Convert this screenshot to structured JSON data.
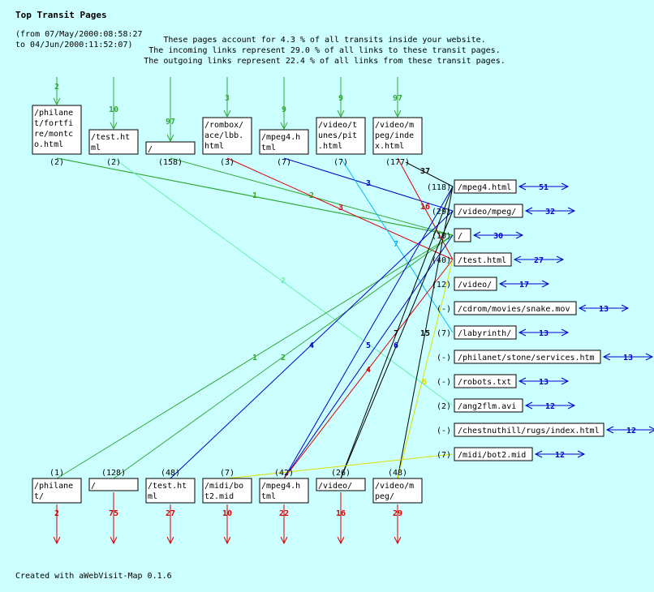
{
  "header": {
    "title": "Top Transit Pages",
    "period_line1": "(from 07/May/2000:08:58:27",
    "period_line2": "to 04/Jun/2000:11:52:07)",
    "summary": [
      "These pages account for 4.3 % of all transits inside your website.",
      "The incoming links represent 29.0 % of all links to these transit pages.",
      "The outgoing links represent 22.4 % of all links from these transit pages."
    ]
  },
  "colors": {
    "background": "#ccffff",
    "green": "#33aa33",
    "blue": "#0000cc",
    "red": "#dd0000",
    "cyan": "#00bbff",
    "yellow": "#dddd00",
    "lightgreen": "#66eeaa",
    "black": "#000000"
  },
  "top_sources": [
    {
      "label": [
        "/philane",
        "t/fortfi",
        "re/montc",
        "o.html"
      ],
      "count": "(2)",
      "incoming": "2"
    },
    {
      "label": [
        "/test.ht",
        "ml"
      ],
      "count": "(2)",
      "incoming": "10"
    },
    {
      "label": [
        "/"
      ],
      "count": "(158)",
      "incoming": "97"
    },
    {
      "label": [
        "/rombox/",
        "ace/lbb.",
        "html"
      ],
      "count": "(3)",
      "incoming": "3"
    },
    {
      "label": [
        "/mpeg4.h",
        "tml"
      ],
      "count": "(7)",
      "incoming": "9"
    },
    {
      "label": [
        "/video/t",
        "unes/pit",
        ".html"
      ],
      "count": "(7)",
      "incoming": "9"
    },
    {
      "label": [
        "/video/m",
        "peg/inde",
        "x.html"
      ],
      "count": "(177)",
      "incoming": "97"
    }
  ],
  "transit_pages": [
    {
      "label": "/mpeg4.html",
      "count": "(118)",
      "outgoing": "51"
    },
    {
      "label": "/video/mpeg/",
      "count": "(29)",
      "outgoing": "32"
    },
    {
      "label": "/",
      "count": "(10)",
      "outgoing": "30"
    },
    {
      "label": "/test.html",
      "count": "(40)",
      "outgoing": "27"
    },
    {
      "label": "/video/",
      "count": "(12)",
      "outgoing": "17"
    },
    {
      "label": "/cdrom/movies/snake.mov",
      "count": "(-)",
      "outgoing": "13"
    },
    {
      "label": "/labyrinth/",
      "count": "(7)",
      "outgoing": "13"
    },
    {
      "label": "/philanet/stone/services.htm",
      "count": "(-)",
      "outgoing": "13"
    },
    {
      "label": "/robots.txt",
      "count": "(-)",
      "outgoing": "13"
    },
    {
      "label": "/ang2flm.avi",
      "count": "(2)",
      "outgoing": "12"
    },
    {
      "label": "/chestnuthill/rugs/index.html",
      "count": "(-)",
      "outgoing": "12"
    },
    {
      "label": "/midi/bot2.mid",
      "count": "(7)",
      "outgoing": "12"
    }
  ],
  "bottom_targets": [
    {
      "label": [
        "/philane",
        "t/"
      ],
      "count": "(1)",
      "outgoing": "2"
    },
    {
      "label": [
        "/"
      ],
      "count": "(128)",
      "outgoing": "75"
    },
    {
      "label": [
        "/test.ht",
        "ml"
      ],
      "count": "(48)",
      "outgoing": "27"
    },
    {
      "label": [
        "/midi/bo",
        "t2.mid"
      ],
      "count": "(7)",
      "outgoing": "10"
    },
    {
      "label": [
        "/mpeg4.h",
        "tml"
      ],
      "count": "(42)",
      "outgoing": "22"
    },
    {
      "label": [
        "/video/"
      ],
      "count": "(26)",
      "outgoing": "16"
    },
    {
      "label": [
        "/video/m",
        "peg/"
      ],
      "count": "(48)",
      "outgoing": "29"
    }
  ],
  "link_labels": [
    "37",
    "16",
    "3",
    "1",
    "2",
    "3",
    "7",
    "2",
    "1",
    "2",
    "4",
    "5",
    "6",
    "7",
    "15",
    "4",
    "6"
  ],
  "footer": "Created with aWebVisit-Map 0.1.6"
}
